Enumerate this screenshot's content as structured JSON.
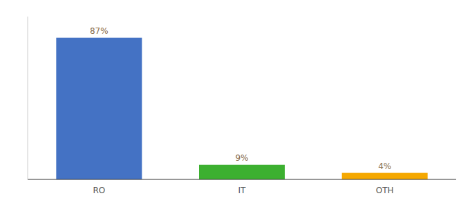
{
  "chart_data": {
    "type": "bar",
    "categories": [
      "RO",
      "IT",
      "OTH"
    ],
    "values": [
      87,
      9,
      4
    ],
    "value_labels": [
      "87%",
      "9%",
      "4%"
    ],
    "colors": [
      "#4472c4",
      "#3cb030",
      "#f5a800"
    ],
    "ylim": [
      0,
      100
    ],
    "data_labels": true,
    "tick_labels": "x",
    "grid": false
  }
}
